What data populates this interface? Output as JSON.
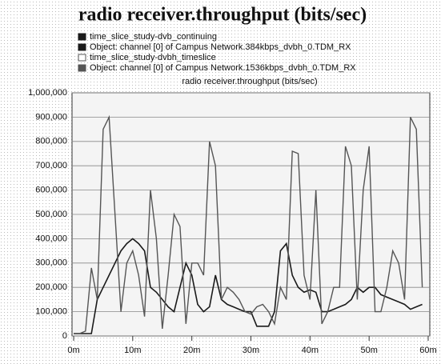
{
  "chart_data": {
    "type": "line",
    "title": "radio receiver.throughput (bits/sec)",
    "y_label": "radio receiver.throughput (bits/sec)",
    "series": [
      {
        "name": "time_slice_study-dvb_continuing",
        "object": "Object: channel [0] of Campus Network.384kbps_dvbh_0.TDM_RX",
        "color": "#1a1a1a",
        "values": [
          10000,
          10000,
          10000,
          10000,
          150000,
          200000,
          250000,
          300000,
          350000,
          380000,
          400000,
          380000,
          350000,
          200000,
          180000,
          150000,
          120000,
          100000,
          200000,
          300000,
          250000,
          130000,
          100000,
          120000,
          250000,
          150000,
          130000,
          120000,
          110000,
          100000,
          100000,
          40000,
          40000,
          40000,
          100000,
          350000,
          380000,
          250000,
          200000,
          180000,
          190000,
          180000,
          100000,
          100000,
          110000,
          120000,
          130000,
          150000,
          200000,
          180000,
          200000,
          200000,
          170000,
          160000,
          150000,
          140000,
          130000,
          110000,
          120000,
          130000
        ]
      },
      {
        "name": "time_slice_study-dvbh_timeslice",
        "object": "Object: channel [0] of Campus Network.1536kbps_dvbh_0.TDM_RX",
        "color": "#555555",
        "values": [
          10000,
          10000,
          20000,
          280000,
          150000,
          850000,
          900000,
          500000,
          100000,
          300000,
          350000,
          250000,
          80000,
          600000,
          400000,
          30000,
          250000,
          500000,
          450000,
          50000,
          300000,
          300000,
          250000,
          800000,
          700000,
          150000,
          200000,
          180000,
          150000,
          100000,
          90000,
          120000,
          130000,
          100000,
          50000,
          200000,
          150000,
          760000,
          750000,
          250000,
          150000,
          600000,
          50000,
          100000,
          200000,
          200000,
          780000,
          700000,
          150000,
          600000,
          780000,
          100000,
          100000,
          200000,
          350000,
          300000,
          150000,
          900000,
          850000,
          200000
        ]
      }
    ],
    "x": [
      0,
      1,
      2,
      3,
      4,
      5,
      6,
      7,
      8,
      9,
      10,
      11,
      12,
      13,
      14,
      15,
      16,
      17,
      18,
      19,
      20,
      21,
      22,
      23,
      24,
      25,
      26,
      27,
      28,
      29,
      30,
      31,
      32,
      33,
      34,
      35,
      36,
      37,
      38,
      39,
      40,
      41,
      42,
      43,
      44,
      45,
      46,
      47,
      48,
      49,
      50,
      51,
      52,
      53,
      54,
      55,
      56,
      57,
      58,
      59
    ],
    "xlim": [
      0,
      60
    ],
    "xticks": [
      {
        "value": 0,
        "label": "0m"
      },
      {
        "value": 10,
        "label": "10m"
      },
      {
        "value": 20,
        "label": "20m"
      },
      {
        "value": 30,
        "label": "30m"
      },
      {
        "value": 40,
        "label": "40m"
      },
      {
        "value": 50,
        "label": "50m"
      },
      {
        "value": 60,
        "label": "60m"
      }
    ],
    "ylim": [
      0,
      1000000
    ],
    "yticks": [
      {
        "value": 0,
        "label": "0"
      },
      {
        "value": 100000,
        "label": "100,000"
      },
      {
        "value": 200000,
        "label": "200,000"
      },
      {
        "value": 300000,
        "label": "300,000"
      },
      {
        "value": 400000,
        "label": "400,000"
      },
      {
        "value": 500000,
        "label": "500,000"
      },
      {
        "value": 600000,
        "label": "600,000"
      },
      {
        "value": 700000,
        "label": "700,000"
      },
      {
        "value": 800000,
        "label": "800,000"
      },
      {
        "value": 900000,
        "label": "900,000"
      },
      {
        "value": 1000000,
        "label": "1,000,000"
      }
    ],
    "grid": true
  }
}
